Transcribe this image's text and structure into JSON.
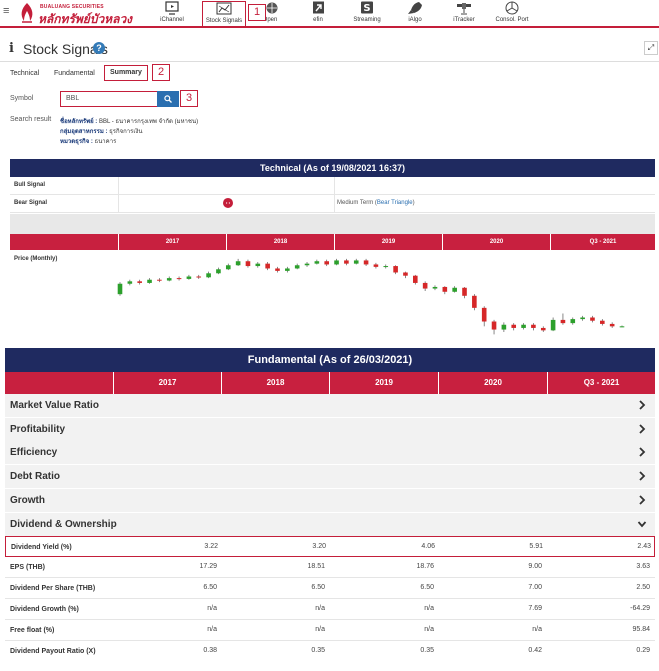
{
  "brand": {
    "name_small": "BUALUANG SECURITIES",
    "name_thai": "หลักทรัพย์บัวหลวง",
    "accent": "#c41e3a",
    "navy": "#1f2a60"
  },
  "nav": {
    "items": [
      {
        "label": "iChannel",
        "icon": "monitor-icon"
      },
      {
        "label": "Stock Signals",
        "icon": "chart-icon",
        "active": true
      },
      {
        "label": "Open",
        "icon": "globe-icon"
      },
      {
        "label": "efin",
        "icon": "arrow-box-icon"
      },
      {
        "label": "Streaming",
        "icon": "s-box-icon"
      },
      {
        "label": "iAlgo",
        "icon": "rocket-icon"
      },
      {
        "label": "iTracker",
        "icon": "satellite-icon"
      },
      {
        "label": "Consol. Port",
        "icon": "pie-icon"
      }
    ]
  },
  "callouts": [
    "1",
    "2",
    "3"
  ],
  "page": {
    "title": "Stock Signals",
    "help": "?"
  },
  "tabs": [
    "Technical",
    "Fundamental",
    "Summary"
  ],
  "symbol": {
    "label": "Symbol",
    "value": "BBL"
  },
  "search_result": {
    "label": "Search result",
    "lines": [
      {
        "key": "ชื่อหลักทรัพย์ :",
        "value": "BBL - ธนาคารกรุงเทพ จำกัด (มหาชน)"
      },
      {
        "key": "กลุ่มอุตสาหกรรม :",
        "value": "ธุรกิจการเงิน"
      },
      {
        "key": "หมวดธุรกิจ :",
        "value": "ธนาคาร"
      }
    ]
  },
  "technical": {
    "title": "Technical (As of 19/08/2021 16:37)",
    "bull_label": "Bull Signal",
    "bear_label": "Bear Signal",
    "bear_term_prefix": "Medium Term (",
    "bear_term_link": "Bear Triangle",
    "bear_term_suffix": ")",
    "years": [
      "2017",
      "2018",
      "2019",
      "2020",
      "Q3 - 2021"
    ],
    "price_label": "Price (Monthly)"
  },
  "chart_data": {
    "type": "candlestick",
    "label": "Price (Monthly)",
    "periods": [
      "2017",
      "2018",
      "2019",
      "2020",
      "Q3 - 2021"
    ],
    "candles": [
      {
        "o": 162,
        "c": 175,
        "h": 177,
        "l": 160
      },
      {
        "o": 175,
        "c": 178,
        "h": 180,
        "l": 173
      },
      {
        "o": 178,
        "c": 176,
        "h": 180,
        "l": 174
      },
      {
        "o": 176,
        "c": 180,
        "h": 182,
        "l": 175
      },
      {
        "o": 180,
        "c": 179,
        "h": 182,
        "l": 177
      },
      {
        "o": 179,
        "c": 182,
        "h": 184,
        "l": 178
      },
      {
        "o": 182,
        "c": 181,
        "h": 184,
        "l": 179
      },
      {
        "o": 181,
        "c": 184,
        "h": 186,
        "l": 180
      },
      {
        "o": 184,
        "c": 183,
        "h": 186,
        "l": 181
      },
      {
        "o": 183,
        "c": 188,
        "h": 190,
        "l": 182
      },
      {
        "o": 188,
        "c": 193,
        "h": 195,
        "l": 187
      },
      {
        "o": 193,
        "c": 198,
        "h": 200,
        "l": 192
      },
      {
        "o": 198,
        "c": 203,
        "h": 206,
        "l": 197
      },
      {
        "o": 203,
        "c": 197,
        "h": 205,
        "l": 195
      },
      {
        "o": 197,
        "c": 200,
        "h": 202,
        "l": 195
      },
      {
        "o": 200,
        "c": 194,
        "h": 202,
        "l": 192
      },
      {
        "o": 194,
        "c": 191,
        "h": 196,
        "l": 189
      },
      {
        "o": 191,
        "c": 194,
        "h": 196,
        "l": 189
      },
      {
        "o": 194,
        "c": 198,
        "h": 200,
        "l": 193
      },
      {
        "o": 198,
        "c": 200,
        "h": 202,
        "l": 196
      },
      {
        "o": 200,
        "c": 203,
        "h": 205,
        "l": 199
      },
      {
        "o": 203,
        "c": 199,
        "h": 205,
        "l": 197
      },
      {
        "o": 199,
        "c": 204,
        "h": 206,
        "l": 198
      },
      {
        "o": 204,
        "c": 200,
        "h": 206,
        "l": 198
      },
      {
        "o": 200,
        "c": 204,
        "h": 206,
        "l": 199
      },
      {
        "o": 204,
        "c": 199,
        "h": 206,
        "l": 197
      },
      {
        "o": 199,
        "c": 196,
        "h": 201,
        "l": 194
      },
      {
        "o": 196,
        "c": 197,
        "h": 199,
        "l": 194
      },
      {
        "o": 197,
        "c": 189,
        "h": 198,
        "l": 187
      },
      {
        "o": 189,
        "c": 185,
        "h": 190,
        "l": 182
      },
      {
        "o": 185,
        "c": 176,
        "h": 186,
        "l": 174
      },
      {
        "o": 176,
        "c": 169,
        "h": 178,
        "l": 166
      },
      {
        "o": 169,
        "c": 171,
        "h": 173,
        "l": 167
      },
      {
        "o": 171,
        "c": 165,
        "h": 172,
        "l": 162
      },
      {
        "o": 165,
        "c": 170,
        "h": 172,
        "l": 164
      },
      {
        "o": 170,
        "c": 160,
        "h": 171,
        "l": 157
      },
      {
        "o": 160,
        "c": 145,
        "h": 162,
        "l": 142
      },
      {
        "o": 145,
        "c": 128,
        "h": 147,
        "l": 122
      },
      {
        "o": 128,
        "c": 118,
        "h": 130,
        "l": 112
      },
      {
        "o": 118,
        "c": 124,
        "h": 127,
        "l": 115
      },
      {
        "o": 124,
        "c": 120,
        "h": 126,
        "l": 117
      },
      {
        "o": 120,
        "c": 124,
        "h": 126,
        "l": 118
      },
      {
        "o": 124,
        "c": 120,
        "h": 126,
        "l": 117
      },
      {
        "o": 120,
        "c": 117,
        "h": 122,
        "l": 115
      },
      {
        "o": 117,
        "c": 130,
        "h": 133,
        "l": 116
      },
      {
        "o": 130,
        "c": 126,
        "h": 138,
        "l": 124
      },
      {
        "o": 126,
        "c": 131,
        "h": 133,
        "l": 124
      },
      {
        "o": 131,
        "c": 133,
        "h": 135,
        "l": 129
      },
      {
        "o": 133,
        "c": 129,
        "h": 135,
        "l": 127
      },
      {
        "o": 129,
        "c": 125,
        "h": 131,
        "l": 123
      },
      {
        "o": 125,
        "c": 122,
        "h": 127,
        "l": 120
      },
      {
        "o": 122,
        "c": 122,
        "h": 123,
        "l": 121
      }
    ],
    "colors": {
      "up": "#2ca02c",
      "down": "#d62728"
    }
  },
  "fundamental": {
    "title": "Fundamental (As of 26/03/2021)",
    "years": [
      "2017",
      "2018",
      "2019",
      "2020",
      "Q3 - 2021"
    ],
    "sections": [
      "Market Value Ratio",
      "Profitability",
      "Efficiency",
      "Debt Ratio",
      "Growth",
      "Dividend & Ownership"
    ],
    "rows": [
      {
        "label": "Dividend Yield (%)",
        "values": [
          "3.22",
          "3.20",
          "4.06",
          "5.91",
          "2.43"
        ]
      },
      {
        "label": "EPS (THB)",
        "values": [
          "17.29",
          "18.51",
          "18.76",
          "9.00",
          "3.63"
        ]
      },
      {
        "label": "Dividend Per Share (THB)",
        "values": [
          "6.50",
          "6.50",
          "6.50",
          "7.00",
          "2.50"
        ]
      },
      {
        "label": "Dividend Growth (%)",
        "values": [
          "n/a",
          "n/a",
          "n/a",
          "7.69",
          "-64.29"
        ]
      },
      {
        "label": "Free float (%)",
        "values": [
          "n/a",
          "n/a",
          "n/a",
          "n/a",
          "95.84"
        ]
      },
      {
        "label": "Dividend Payout Ratio (X)",
        "values": [
          "0.38",
          "0.35",
          "0.35",
          "0.42",
          "0.29"
        ]
      }
    ]
  }
}
